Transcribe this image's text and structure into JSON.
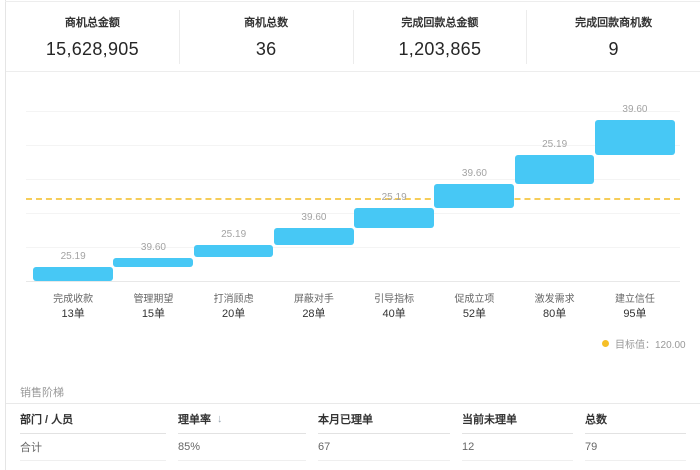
{
  "stats": [
    {
      "label": "商机总金额",
      "value": "15,628,905"
    },
    {
      "label": "商机总数",
      "value": "36"
    },
    {
      "label": "完成回款总金额",
      "value": "1,203,865"
    },
    {
      "label": "完成回款商机数",
      "value": "9"
    }
  ],
  "chart_data": {
    "type": "waterfall",
    "title": "",
    "categories": [
      {
        "name": "完成收款",
        "count": "13单"
      },
      {
        "name": "管理期望",
        "count": "15单"
      },
      {
        "name": "打消顾虑",
        "count": "20单"
      },
      {
        "name": "屏蔽对手",
        "count": "28单"
      },
      {
        "name": "引导指标",
        "count": "40单"
      },
      {
        "name": "促成立项",
        "count": "52单"
      },
      {
        "name": "激发需求",
        "count": "80单"
      },
      {
        "name": "建立信任",
        "count": "95单"
      }
    ],
    "bars": [
      {
        "label": "25.19",
        "start": 0,
        "end": 20
      },
      {
        "label": "39.60",
        "start": 20,
        "end": 34.5
      },
      {
        "label": "25.19",
        "start": 34.5,
        "end": 53.5
      },
      {
        "label": "39.60",
        "start": 53.5,
        "end": 78.5
      },
      {
        "label": "25.19",
        "start": 78.5,
        "end": 107.5
      },
      {
        "label": "39.60",
        "start": 107.5,
        "end": 143
      },
      {
        "label": "25.19",
        "start": 143,
        "end": 185
      },
      {
        "label": "39.60",
        "start": 185,
        "end": 236.5
      }
    ],
    "target": {
      "value": 120,
      "legend": "目标值：120.00"
    },
    "ylim": [
      0,
      275
    ],
    "grid_step": 50,
    "grid": true,
    "legend_position": "bottom-right",
    "colors": {
      "bar": "#47c8f5",
      "target": "#f5c53d",
      "legend_dot": "#f5bf28"
    }
  },
  "table": {
    "section_title": "销售阶梯",
    "columns": [
      {
        "label": "部门 / 人员",
        "sort_icon": ""
      },
      {
        "label": "理单率",
        "sort_icon": "↓"
      },
      {
        "label": "本月已理单",
        "sort_icon": ""
      },
      {
        "label": "当前未理单",
        "sort_icon": ""
      },
      {
        "label": "总数",
        "sort_icon": ""
      }
    ],
    "rows": [
      {
        "cells": [
          "合计",
          "85%",
          "67",
          "12",
          "79"
        ]
      }
    ]
  }
}
